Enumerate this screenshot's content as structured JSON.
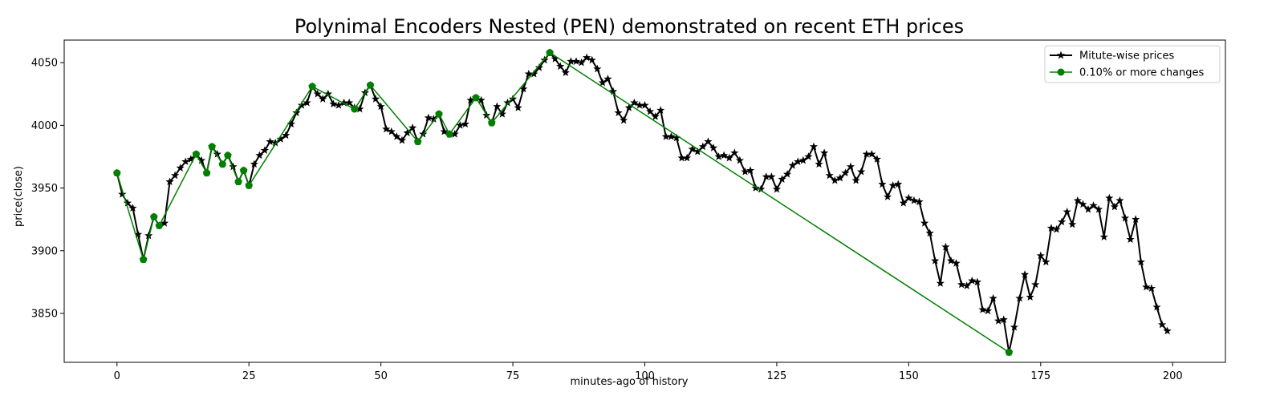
{
  "chart_data": {
    "type": "line",
    "title": "Polynimal Encoders Nested (PEN) demonstrated on recent ETH prices",
    "xlabel": "minutes-ago of history",
    "ylabel": "price(close)",
    "xlim": [
      -10,
      210
    ],
    "ylim": [
      3811,
      4068
    ],
    "xticks": [
      0,
      25,
      50,
      75,
      100,
      125,
      150,
      175,
      200
    ],
    "xtick_labels": [
      "0",
      "25",
      "50",
      "75",
      "100",
      "125",
      "150",
      "175",
      "200"
    ],
    "yticks": [
      3850,
      3900,
      3950,
      4000,
      4050
    ],
    "ytick_labels": [
      "3850",
      "3900",
      "3950",
      "4000",
      "4050"
    ],
    "grid": false,
    "legend_position": "top-right",
    "series": [
      {
        "name": "Mitute-wise prices",
        "color": "#000000",
        "marker": "star",
        "x": [
          0,
          1,
          2,
          3,
          4,
          5,
          6,
          7,
          8,
          9,
          10,
          11,
          12,
          13,
          14,
          15,
          16,
          17,
          18,
          19,
          20,
          21,
          22,
          23,
          24,
          25,
          26,
          27,
          28,
          29,
          30,
          31,
          32,
          33,
          34,
          35,
          36,
          37,
          38,
          39,
          40,
          41,
          42,
          43,
          44,
          45,
          46,
          47,
          48,
          49,
          50,
          51,
          52,
          53,
          54,
          55,
          56,
          57,
          58,
          59,
          60,
          61,
          62,
          63,
          64,
          65,
          66,
          67,
          68,
          69,
          70,
          71,
          72,
          73,
          74,
          75,
          76,
          77,
          78,
          79,
          80,
          81,
          82,
          83,
          84,
          85,
          86,
          87,
          88,
          89,
          90,
          91,
          92,
          93,
          94,
          95,
          96,
          97,
          98,
          99,
          100,
          101,
          102,
          103,
          104,
          105,
          106,
          107,
          108,
          109,
          110,
          111,
          112,
          113,
          114,
          115,
          116,
          117,
          118,
          119,
          120,
          121,
          122,
          123,
          124,
          125,
          126,
          127,
          128,
          129,
          130,
          131,
          132,
          133,
          134,
          135,
          136,
          137,
          138,
          139,
          140,
          141,
          142,
          143,
          144,
          145,
          146,
          147,
          148,
          149,
          150,
          151,
          152,
          153,
          154,
          155,
          156,
          157,
          158,
          159,
          160,
          161,
          162,
          163,
          164,
          165,
          166,
          167,
          168,
          169,
          170,
          171,
          172,
          173,
          174,
          175,
          176,
          177,
          178,
          179,
          180,
          181,
          182,
          183,
          184,
          185,
          186,
          187,
          188,
          189,
          190,
          191,
          192,
          193,
          194,
          195,
          196,
          197,
          198,
          199
        ],
        "values": [
          3962,
          3945,
          3938,
          3934,
          3913,
          3893,
          3912,
          3927,
          3920,
          3922,
          3955,
          3960,
          3966,
          3971,
          3973,
          3977,
          3972,
          3962,
          3983,
          3977,
          3969,
          3976,
          3967,
          3955,
          3964,
          3952,
          3969,
          3976,
          3980,
          3987,
          3986,
          3989,
          3992,
          4001,
          4010,
          4016,
          4018,
          4031,
          4025,
          4021,
          4025,
          4017,
          4016,
          4018,
          4018,
          4014,
          4013,
          4026,
          4032,
          4021,
          4015,
          3997,
          3995,
          3991,
          3988,
          3994,
          3998,
          3987,
          3993,
          4006,
          4005,
          4009,
          3995,
          3993,
          3993,
          4000,
          4001,
          4020,
          4022,
          4020,
          4008,
          4002,
          4015,
          4009,
          4018,
          4021,
          4014,
          4029,
          4041,
          4041,
          4046,
          4052,
          4058,
          4053,
          4047,
          4042,
          4051,
          4051,
          4050,
          4054,
          4052,
          4045,
          4034,
          4037,
          4027,
          4010,
          4004,
          4014,
          4018,
          4016,
          4016,
          4011,
          4007,
          4012,
          3991,
          3991,
          3990,
          3974,
          3974,
          3981,
          3979,
          3983,
          3987,
          3982,
          3975,
          3976,
          3974,
          3978,
          3972,
          3963,
          3964,
          3950,
          3949,
          3959,
          3959,
          3949,
          3957,
          3961,
          3968,
          3971,
          3972,
          3975,
          3983,
          3969,
          3978,
          3960,
          3956,
          3958,
          3962,
          3967,
          3956,
          3963,
          3977,
          3977,
          3973,
          3953,
          3943,
          3952,
          3953,
          3938,
          3942,
          3940,
          3939,
          3922,
          3914,
          3892,
          3874,
          3903,
          3892,
          3890,
          3873,
          3872,
          3876,
          3875,
          3853,
          3852,
          3862,
          3844,
          3845,
          3819,
          3839,
          3862,
          3881,
          3863,
          3873,
          3896,
          3891,
          3918,
          3917,
          3923,
          3931,
          3921,
          3940,
          3937,
          3933,
          3936,
          3933,
          3911,
          3942,
          3935,
          3940,
          3926,
          3909,
          3925,
          3891,
          3871,
          3870,
          3855,
          3841,
          3836
        ]
      },
      {
        "name": "0.10% or more changes",
        "color": "#008000",
        "marker": "circle",
        "x": [
          0,
          5,
          7,
          8,
          15,
          17,
          18,
          20,
          21,
          23,
          24,
          25,
          37,
          45,
          48,
          57,
          61,
          63,
          68,
          71,
          82,
          169
        ],
        "values": [
          3962,
          3893,
          3927,
          3920,
          3977,
          3962,
          3983,
          3969,
          3976,
          3955,
          3964,
          3952,
          4031,
          4013,
          4032,
          3987,
          4009,
          3993,
          4022,
          4002,
          4058,
          3819
        ]
      }
    ]
  }
}
